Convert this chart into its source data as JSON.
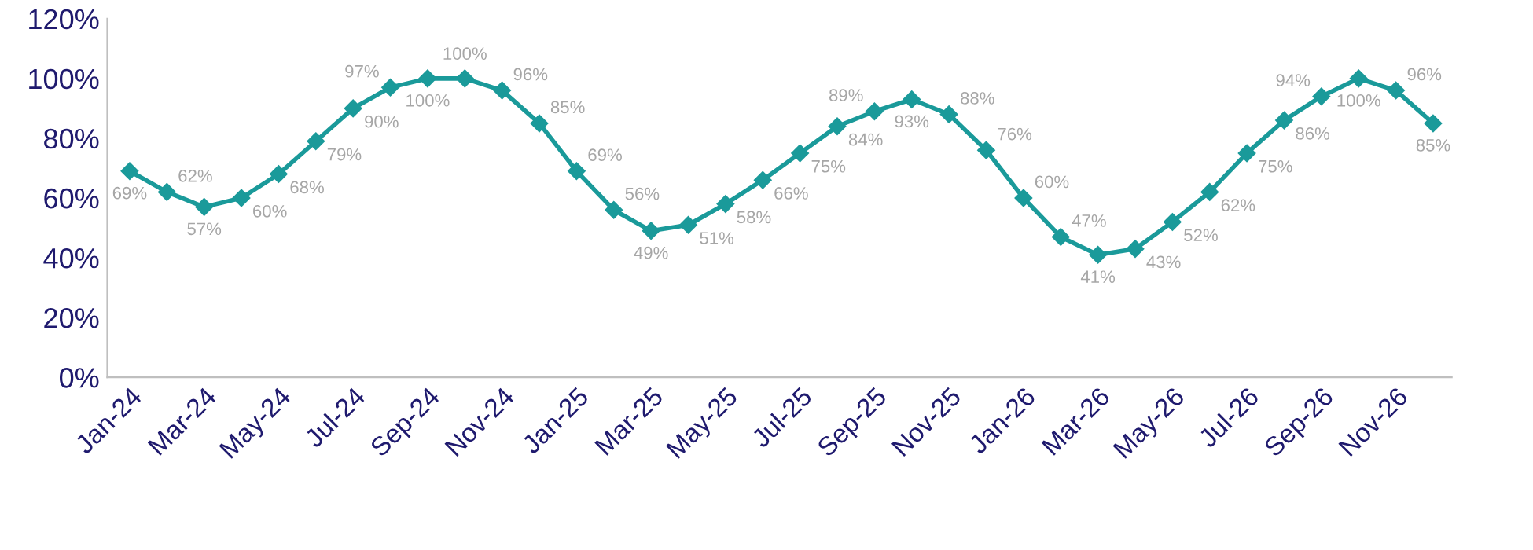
{
  "chart_data": {
    "type": "line",
    "categories": [
      "Jan-24",
      null,
      "Mar-24",
      null,
      "May-24",
      null,
      "Jul-24",
      null,
      "Sep-24",
      null,
      "Nov-24",
      null,
      "Jan-25",
      null,
      "Mar-25",
      null,
      "May-25",
      null,
      "Jul-25",
      null,
      "Sep-25",
      null,
      "Nov-25",
      null,
      "Jan-26",
      null,
      "Mar-26",
      null,
      "May-26",
      null,
      "Jul-26",
      null,
      "Sep-26",
      null,
      "Nov-26",
      null
    ],
    "series": [
      {
        "color": "#1a9a9a",
        "values": [
          69,
          62,
          57,
          60,
          68,
          79,
          90,
          97,
          100,
          100,
          96,
          85,
          69,
          56,
          49,
          51,
          58,
          66,
          75,
          84,
          89,
          93,
          88,
          76,
          60,
          47,
          41,
          43,
          52,
          62,
          75,
          86,
          94,
          100,
          96,
          85
        ],
        "value_labels": [
          "69%",
          "62%",
          "57%",
          "60%",
          "68%",
          "79%",
          "90%",
          "97%",
          "100%",
          "100%",
          "96%",
          "85%",
          "69%",
          "56%",
          "49%",
          "51%",
          "58%",
          "66%",
          "75%",
          "84%",
          "89%",
          "93%",
          "88%",
          "76%",
          "60%",
          "47%",
          "41%",
          "43%",
          "52%",
          "62%",
          "75%",
          "86%",
          "94%",
          "100%",
          "96%",
          "85%"
        ]
      }
    ],
    "ylim": [
      0,
      120
    ],
    "yticks": [
      {
        "value": 0,
        "label": "0%"
      },
      {
        "value": 20,
        "label": "20%"
      },
      {
        "value": 40,
        "label": "40%"
      },
      {
        "value": 60,
        "label": "60%"
      },
      {
        "value": 80,
        "label": "80%"
      },
      {
        "value": 100,
        "label": "100%"
      },
      {
        "value": 120,
        "label": "120%"
      }
    ],
    "grid": false,
    "legend": false,
    "marker": "diamond",
    "line_style": "solid"
  }
}
